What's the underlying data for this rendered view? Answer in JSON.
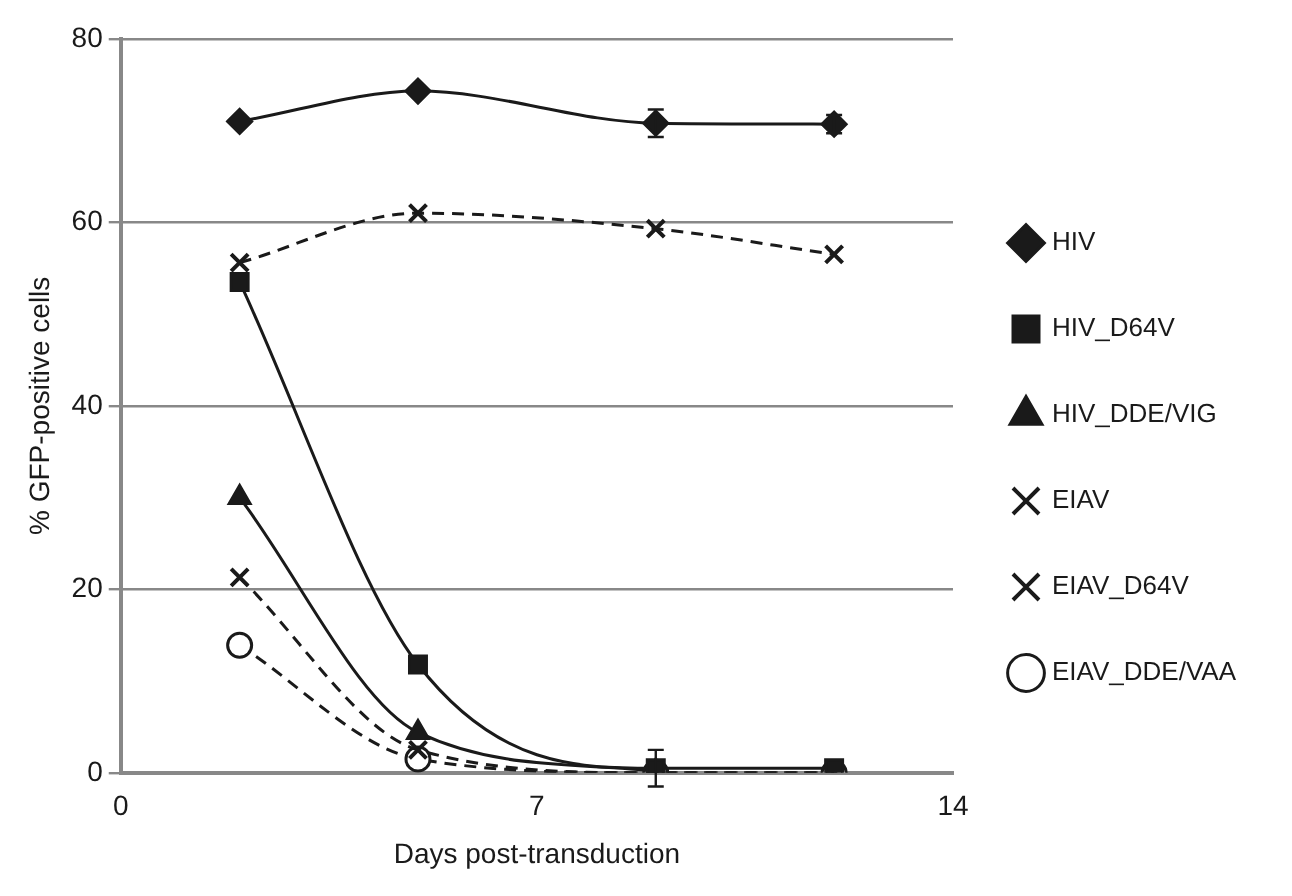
{
  "chart_data": {
    "type": "line",
    "xlabel": "Days post-transduction",
    "ylabel": "% GFP-positive cells",
    "x": [
      2,
      5,
      9,
      12
    ],
    "xlim": [
      0,
      14
    ],
    "xticks": [
      0,
      7,
      14
    ],
    "ylim": [
      0,
      80
    ],
    "yticks": [
      0,
      20,
      40,
      60,
      80
    ],
    "grid": "y",
    "legend": "right",
    "series": [
      {
        "name": "HIV",
        "color": "#1a1a1a",
        "marker": "diamond",
        "line_style": "solid",
        "values": [
          71,
          74.3,
          70.8,
          70.7
        ],
        "errors": [
          null,
          null,
          1.5,
          1
        ]
      },
      {
        "name": "HIV_D64V",
        "color": "#1a1a1a",
        "marker": "square",
        "line_style": "solid",
        "values": [
          53.5,
          11.8,
          0.5,
          0.5
        ],
        "errors": [
          null,
          null,
          2,
          null
        ]
      },
      {
        "name": "HIV_DDE/VIG",
        "color": "#1a1a1a",
        "marker": "triangle",
        "line_style": "solid",
        "values": [
          30,
          4.4,
          0.2,
          null
        ]
      },
      {
        "name": "EIAV",
        "color": "#1a1a1a",
        "marker": "cross",
        "line_style": "dashed",
        "values": [
          55.6,
          61,
          59.3,
          56.5
        ]
      },
      {
        "name": "EIAV_D64V",
        "color": "#1a1a1a",
        "marker": "cross",
        "line_style": "dashed",
        "values": [
          21.3,
          2.5,
          0,
          0
        ]
      },
      {
        "name": "EIAV_DDE/VAA",
        "color": "#1a1a1a",
        "marker": "circle",
        "line_style": "dashed",
        "values": [
          13.9,
          1.5,
          0,
          0
        ]
      }
    ]
  }
}
